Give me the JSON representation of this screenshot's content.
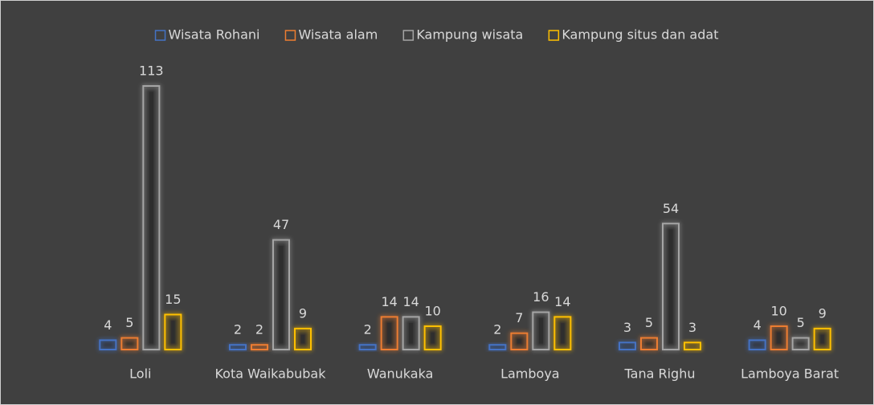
{
  "chart_data": {
    "type": "bar",
    "categories": [
      "Loli",
      "Kota Waikabubak",
      "Wanukaka",
      "Lamboya",
      "Tana Righu",
      "Lamboya Barat"
    ],
    "series": [
      {
        "name": "Wisata Rohani",
        "color": "#4472c4",
        "values": [
          4,
          2,
          2,
          2,
          3,
          4
        ]
      },
      {
        "name": "Wisata alam",
        "color": "#ed7d31",
        "values": [
          5,
          2,
          14,
          7,
          5,
          10
        ]
      },
      {
        "name": "Kampung wisata",
        "color": "#a5a5a5",
        "values": [
          113,
          47,
          14,
          16,
          54,
          5
        ]
      },
      {
        "name": "Kampung situs dan adat",
        "color": "#ffc000",
        "values": [
          15,
          9,
          10,
          14,
          3,
          9
        ]
      }
    ],
    "legend": "top"
  }
}
